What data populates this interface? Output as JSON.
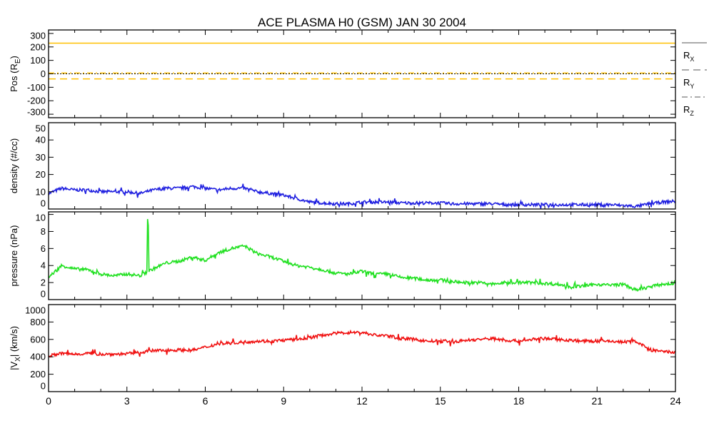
{
  "chart_data": {
    "type": "line",
    "title": "ACE PLASMA H0 (GSM)   JAN 30 2004",
    "x_ticks": [
      "0",
      "3",
      "6",
      "9",
      "12",
      "15",
      "18",
      "21",
      "24"
    ],
    "xlim": [
      0,
      24
    ],
    "x": [
      0,
      0.5,
      1,
      1.5,
      2,
      2.5,
      3,
      3.5,
      4,
      4.5,
      5,
      5.5,
      6,
      6.5,
      7,
      7.5,
      8,
      8.5,
      9,
      9.5,
      10,
      10.5,
      11,
      11.5,
      12,
      12.5,
      13,
      13.5,
      14,
      14.5,
      15,
      15.5,
      16,
      16.5,
      17,
      17.5,
      18,
      18.5,
      19,
      19.5,
      20,
      20.5,
      21,
      21.5,
      22,
      22.5,
      23,
      23.5,
      24
    ],
    "panels": [
      {
        "ylabel": "Pos (R",
        "ylabel_sub": "E",
        "ylabel_end": ")",
        "ylim": [
          -326,
          326
        ],
        "y_ticks": [
          "300",
          "200",
          "100",
          "0",
          "-100",
          "-200",
          "-300"
        ],
        "y_tick_values": [
          300,
          200,
          100,
          0,
          -100,
          -200,
          -300
        ],
        "zero_line": true,
        "legend": [
          {
            "label": "R",
            "sub": "X",
            "dash": "solid"
          },
          {
            "label": "R",
            "sub": "Y",
            "dash": "dashed"
          },
          {
            "label": "R",
            "sub": "Z",
            "dash": "dashdot"
          }
        ],
        "series": [
          {
            "name": "Rx",
            "color": "#ffc000",
            "dash": "solid",
            "constant": 228
          },
          {
            "name": "Ry",
            "color": "#ffc000",
            "dash": "dashed",
            "constant": -38
          },
          {
            "name": "Rz",
            "color": "#ffc000",
            "dash": "dashdot",
            "constant": 6
          }
        ]
      },
      {
        "ylabel": "density (#/cc)",
        "ylim": [
          0,
          50
        ],
        "y_ticks": [
          "50",
          "40",
          "30",
          "20",
          "10",
          "0"
        ],
        "y_tick_values": [
          50,
          40,
          30,
          20,
          10,
          0
        ],
        "series": [
          {
            "name": "density",
            "color": "#2020e0",
            "values": [
              9,
              12,
              11,
              11,
              10,
              10,
              10,
              9,
              11,
              12,
              12,
              13,
              12,
              11,
              12,
              12,
              10,
              9,
              8,
              6,
              4,
              3.5,
              3,
              3,
              4,
              4,
              4,
              3.5,
              3.5,
              3.5,
              3.5,
              3,
              3,
              3,
              3,
              2.5,
              2.5,
              2.5,
              2.5,
              2.5,
              2.5,
              2.5,
              2.5,
              2.5,
              2,
              1.5,
              3,
              4,
              4.5
            ]
          }
        ]
      },
      {
        "ylabel": "pressure (nPa)",
        "ylim": [
          0,
          10.3
        ],
        "y_ticks": [
          "10",
          "8",
          "6",
          "4",
          "2",
          "0"
        ],
        "y_tick_values": [
          10,
          8,
          6,
          4,
          2,
          0
        ],
        "series": [
          {
            "name": "pressure",
            "color": "#20e020",
            "values": [
              2.6,
              4,
              3.6,
              3.5,
              3,
              2.8,
              3,
              2.8,
              3.6,
              4.3,
              4.5,
              5,
              4.6,
              5.5,
              6,
              6.3,
              5.4,
              5,
              4.5,
              4,
              3.8,
              3.5,
              3.1,
              3,
              3.3,
              3,
              3,
              2.6,
              2.5,
              2.3,
              2.3,
              2.1,
              2,
              2,
              1.8,
              2,
              2,
              2,
              1.9,
              1.8,
              1.5,
              1.6,
              1.8,
              1.7,
              1.8,
              1.1,
              1.5,
              1.8,
              1.9
            ],
            "spike": {
              "x": 3.8,
              "value": 10
            }
          }
        ]
      },
      {
        "ylabel": "|V",
        "ylabel_sub": "X",
        "ylabel_end": "| (km/s)",
        "ylim": [
          0,
          1000
        ],
        "y_ticks": [
          "1000",
          "800",
          "600",
          "400",
          "200",
          "0"
        ],
        "y_tick_values": [
          1000,
          800,
          600,
          400,
          200,
          0
        ],
        "series": [
          {
            "name": "Vx",
            "color": "#f01010",
            "values": [
              410,
              440,
              430,
              440,
              430,
              430,
              435,
              450,
              470,
              475,
              480,
              475,
              510,
              550,
              560,
              570,
              580,
              580,
              590,
              600,
              620,
              650,
              670,
              680,
              680,
              650,
              640,
              610,
              600,
              580,
              580,
              570,
              590,
              600,
              610,
              590,
              580,
              600,
              610,
              600,
              590,
              580,
              580,
              580,
              570,
              580,
              480,
              460,
              450
            ]
          }
        ]
      }
    ]
  }
}
